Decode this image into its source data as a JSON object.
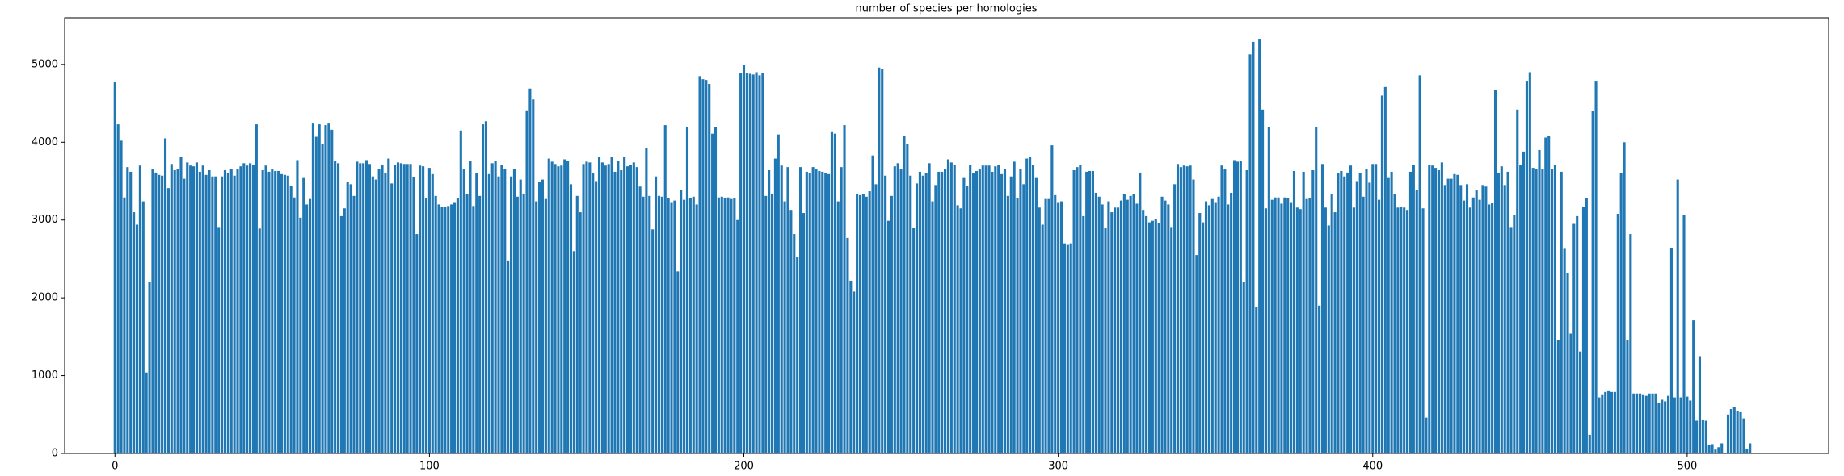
{
  "chart_data": {
    "type": "bar",
    "title": "number of species per homologies",
    "color": "#1f77b4",
    "xlim": [
      -16,
      545
    ],
    "xticks": [
      0,
      100,
      200,
      300,
      400,
      500
    ],
    "ylim": [
      0,
      5600
    ],
    "yticks": [
      0,
      1000,
      2000,
      3000,
      4000,
      5000
    ],
    "values": [
      4770,
      4230,
      4020,
      3290,
      3680,
      3620,
      3100,
      2940,
      3700,
      3240,
      1040,
      2200,
      3650,
      3610,
      3580,
      3570,
      4050,
      3410,
      3720,
      3640,
      3660,
      3810,
      3530,
      3740,
      3700,
      3690,
      3740,
      3620,
      3700,
      3580,
      3640,
      3560,
      3560,
      2910,
      3560,
      3640,
      3600,
      3660,
      3570,
      3650,
      3690,
      3730,
      3700,
      3730,
      3710,
      4230,
      2890,
      3640,
      3700,
      3620,
      3650,
      3630,
      3630,
      3590,
      3580,
      3570,
      3440,
      3290,
      3770,
      3030,
      3540,
      3200,
      3270,
      4240,
      4070,
      4230,
      3980,
      4220,
      4240,
      4160,
      3760,
      3730,
      3050,
      3150,
      3490,
      3460,
      3310,
      3750,
      3730,
      3730,
      3770,
      3720,
      3560,
      3520,
      3650,
      3710,
      3600,
      3790,
      3470,
      3710,
      3740,
      3730,
      3720,
      3720,
      3720,
      3550,
      2820,
      3700,
      3690,
      3280,
      3670,
      3590,
      3310,
      3200,
      3170,
      3170,
      3180,
      3200,
      3230,
      3280,
      4150,
      3650,
      3330,
      3760,
      3180,
      3600,
      3310,
      4230,
      4270,
      3590,
      3730,
      3760,
      3560,
      3710,
      3660,
      2480,
      3560,
      3650,
      3300,
      3520,
      3340,
      4410,
      4690,
      4550,
      3240,
      3490,
      3520,
      3270,
      3790,
      3750,
      3720,
      3690,
      3700,
      3780,
      3760,
      3460,
      2600,
      3310,
      3100,
      3720,
      3750,
      3740,
      3600,
      3500,
      3810,
      3740,
      3700,
      3720,
      3810,
      3620,
      3760,
      3640,
      3810,
      3690,
      3710,
      3740,
      3680,
      3430,
      3300,
      3930,
      3310,
      2880,
      3560,
      3310,
      3300,
      4220,
      3280,
      3230,
      3250,
      2340,
      3390,
      3260,
      4190,
      3280,
      3300,
      3200,
      4850,
      4810,
      4800,
      4750,
      4110,
      4190,
      3290,
      3300,
      3280,
      3290,
      3270,
      3280,
      3000,
      4890,
      4990,
      4890,
      4880,
      4870,
      4900,
      4860,
      4890,
      3310,
      3640,
      3340,
      3790,
      4100,
      3700,
      3240,
      3680,
      3130,
      2820,
      2520,
      3680,
      3090,
      3620,
      3600,
      3680,
      3650,
      3630,
      3620,
      3600,
      3590,
      4140,
      4110,
      3240,
      3680,
      4220,
      2770,
      2220,
      2080,
      3330,
      3320,
      3330,
      3300,
      3370,
      3830,
      3460,
      4960,
      4940,
      3570,
      2990,
      3310,
      3690,
      3730,
      3650,
      4080,
      3980,
      3570,
      2900,
      3470,
      3620,
      3570,
      3600,
      3730,
      3240,
      3450,
      3620,
      3620,
      3660,
      3780,
      3740,
      3710,
      3190,
      3150,
      3540,
      3440,
      3710,
      3600,
      3630,
      3650,
      3700,
      3700,
      3700,
      3620,
      3690,
      3710,
      3590,
      3660,
      3310,
      3560,
      3750,
      3280,
      3660,
      3460,
      3790,
      3810,
      3710,
      3540,
      3160,
      2940,
      3270,
      3270,
      3960,
      3320,
      3230,
      3240,
      2700,
      2680,
      2700,
      3640,
      3680,
      3710,
      3050,
      3620,
      3630,
      3630,
      3350,
      3300,
      3200,
      2900,
      3240,
      3100,
      3160,
      3160,
      3250,
      3330,
      3260,
      3310,
      3330,
      3210,
      3610,
      3130,
      3050,
      2970,
      2990,
      3010,
      2960,
      3300,
      3250,
      3200,
      2910,
      3460,
      3720,
      3680,
      3700,
      3690,
      3700,
      3520,
      2550,
      3090,
      2970,
      3240,
      3190,
      3270,
      3230,
      3300,
      3700,
      3650,
      3200,
      3350,
      3770,
      3750,
      3760,
      2200,
      3640,
      5130,
      5290,
      1880,
      5330,
      4420,
      3150,
      4200,
      3260,
      3290,
      3290,
      3210,
      3290,
      3280,
      3230,
      3630,
      3160,
      3140,
      3620,
      3270,
      3280,
      3640,
      4190,
      1900,
      3720,
      3160,
      2930,
      3330,
      3100,
      3600,
      3630,
      3560,
      3610,
      3700,
      3160,
      3500,
      3600,
      3300,
      3650,
      3480,
      3720,
      3720,
      3260,
      4600,
      4710,
      3540,
      3620,
      3330,
      3160,
      3170,
      3160,
      3130,
      3620,
      3710,
      3390,
      4860,
      3150,
      460,
      3710,
      3700,
      3670,
      3640,
      3740,
      3450,
      3530,
      3530,
      3590,
      3580,
      3450,
      3250,
      3460,
      3160,
      3290,
      3380,
      3260,
      3450,
      3430,
      3200,
      3220,
      4670,
      3600,
      3690,
      3450,
      3620,
      2910,
      3060,
      4420,
      3710,
      3880,
      4780,
      4900,
      3670,
      3650,
      3900,
      3650,
      4060,
      4080,
      3660,
      3710,
      1460,
      3620,
      2630,
      2320,
      1540,
      2950,
      3050,
      1310,
      3170,
      3280,
      240,
      4400,
      4780,
      720,
      760,
      790,
      800,
      790,
      790,
      3080,
      3600,
      4000,
      1460,
      2820,
      770,
      770,
      770,
      760,
      740,
      770,
      770,
      770,
      650,
      690,
      670,
      740,
      2640,
      720,
      3520,
      720,
      3060,
      730,
      680,
      1710,
      420,
      1250,
      430,
      420,
      110,
      120,
      50,
      80,
      130,
      0,
      500,
      570,
      600,
      540,
      530,
      450,
      60,
      130
    ]
  }
}
